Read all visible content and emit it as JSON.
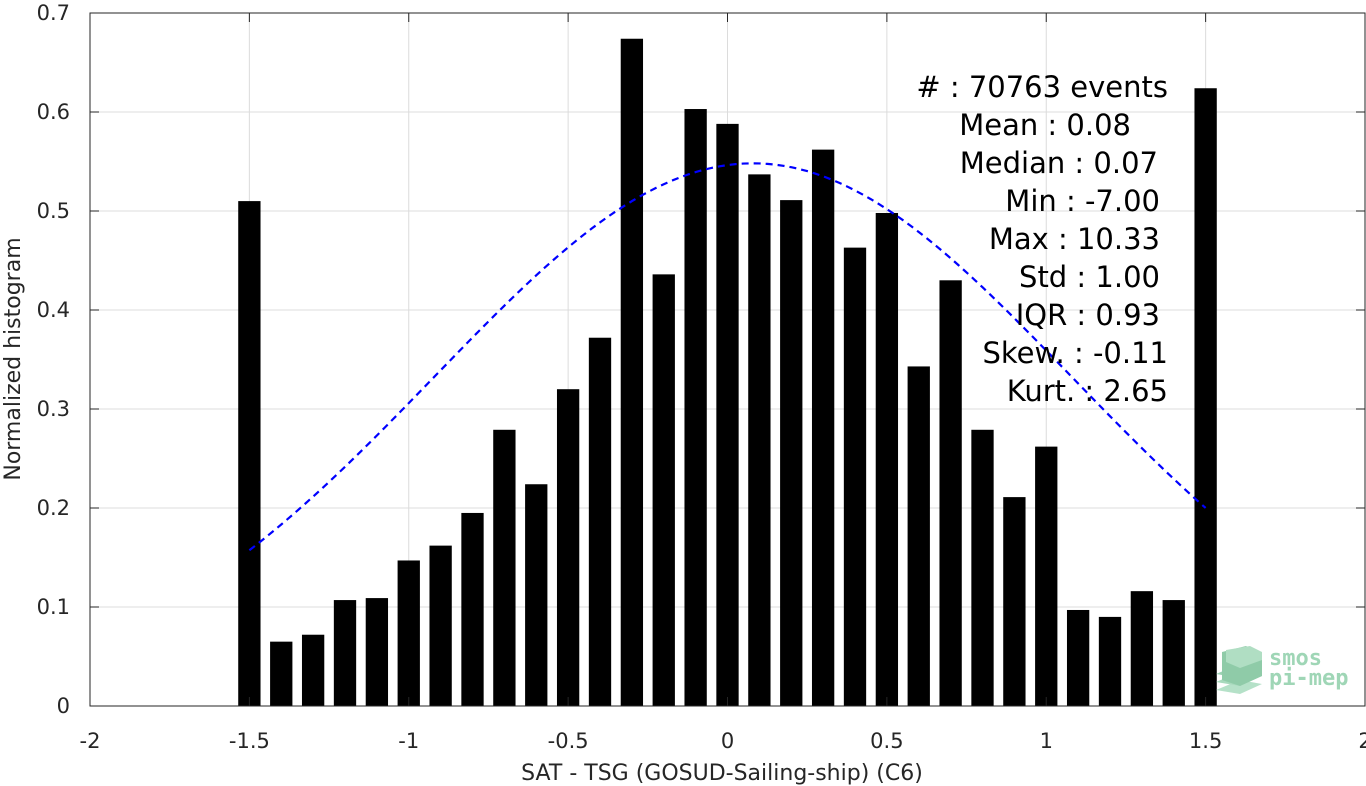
{
  "chart_data": {
    "type": "bar",
    "xlabel": "SAT - TSG (GOSUD-Sailing-ship) (C6)",
    "ylabel": "Normalized histogram",
    "xlim": [
      -2,
      2
    ],
    "ylim": [
      0,
      0.7
    ],
    "xticks": [
      -2,
      -1.5,
      -1,
      -0.5,
      0,
      0.5,
      1,
      1.5,
      2
    ],
    "xtick_labels": [
      "-2",
      "-1.5",
      "-1",
      "-0.5",
      "0",
      "0.5",
      "1",
      "1.5",
      "2"
    ],
    "yticks": [
      0,
      0.1,
      0.2,
      0.3,
      0.4,
      0.5,
      0.6,
      0.7
    ],
    "ytick_labels": [
      "0",
      "0.1",
      "0.2",
      "0.3",
      "0.4",
      "0.5",
      "0.6",
      "0.7"
    ],
    "grid": true,
    "bar_color": "#000000",
    "bar_width": 0.07,
    "bins": [
      -1.5,
      -1.4,
      -1.3,
      -1.2,
      -1.1,
      -1.0,
      -0.9,
      -0.8,
      -0.7,
      -0.6,
      -0.5,
      -0.4,
      -0.3,
      -0.2,
      -0.1,
      0.0,
      0.1,
      0.2,
      0.3,
      0.4,
      0.5,
      0.6,
      0.7,
      0.8,
      0.9,
      1.0,
      1.1,
      1.2,
      1.3,
      1.4,
      1.5
    ],
    "values": [
      0.51,
      0.065,
      0.072,
      0.107,
      0.109,
      0.147,
      0.162,
      0.195,
      0.279,
      0.224,
      0.32,
      0.372,
      0.674,
      0.436,
      0.603,
      0.588,
      0.537,
      0.511,
      0.562,
      0.463,
      0.498,
      0.343,
      0.43,
      0.279,
      0.211,
      0.262,
      0.097,
      0.09,
      0.116,
      0.107,
      0.624
    ],
    "fit_curve": {
      "type": "normal",
      "mean": 0.08,
      "std": 1.0,
      "x_range": [
        -1.5,
        1.5
      ],
      "color": "#0000ff",
      "style": "dashed"
    },
    "stats": [
      "#  : 70763 events",
      "Mean : 0.08",
      "Median : 0.07",
      "Min : -7.00",
      "Max : 10.33",
      "Std : 1.00",
      "IQR : 0.93",
      "Skew. : -0.11",
      "Kurt. : 2.65"
    ]
  },
  "logo": {
    "line1": "smos",
    "line2": "pi-mep"
  }
}
